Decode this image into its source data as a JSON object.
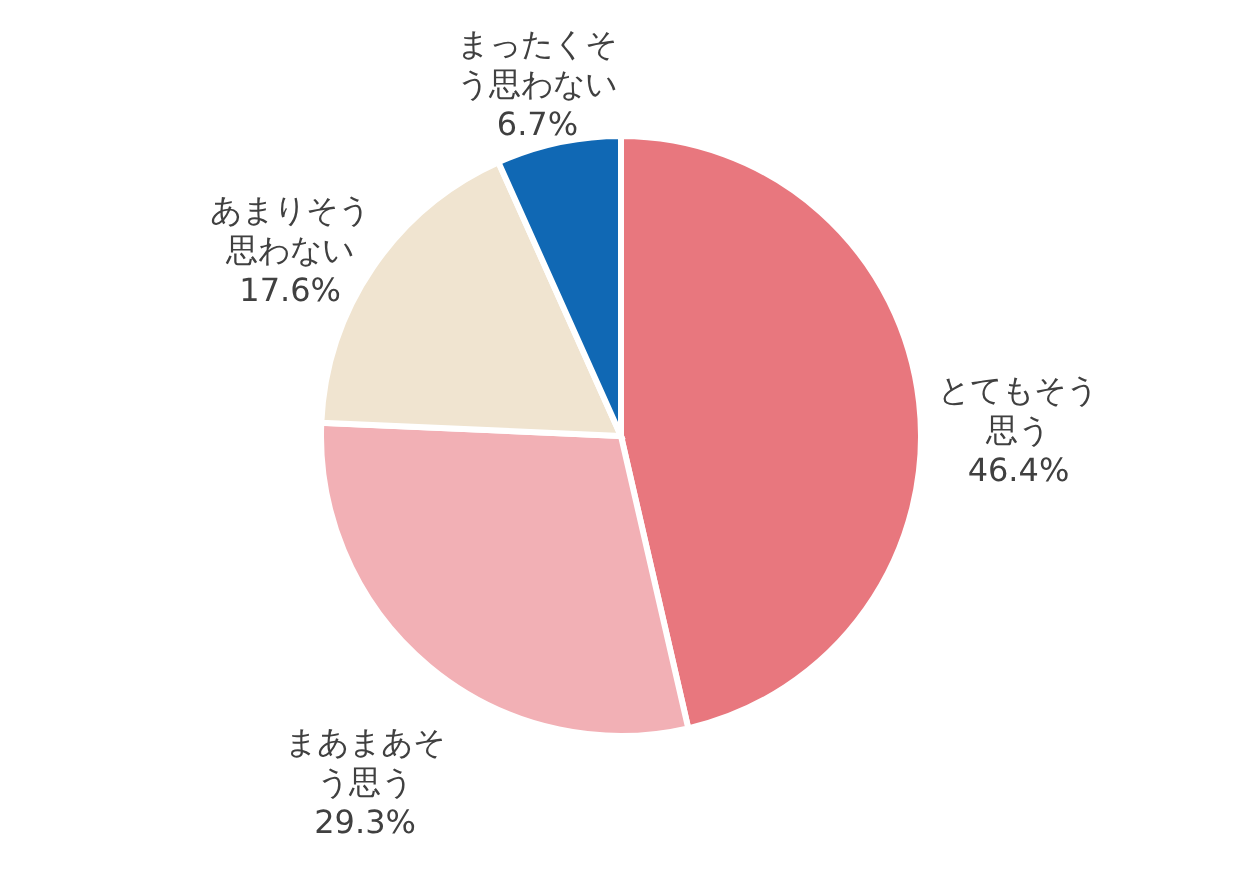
{
  "chart_data": {
    "type": "pie",
    "categories": [
      "とてもそう思う",
      "まあまあそう思う",
      "あまりそう思わない",
      "まったくそう思わない"
    ],
    "values": [
      46.4,
      29.3,
      17.6,
      6.7
    ],
    "colors": [
      "#e8777e",
      "#f2b0b5",
      "#f0e4d0",
      "#1068b4"
    ],
    "value_labels": [
      "46.4%",
      "29.3%",
      "17.6%",
      "6.7%"
    ]
  }
}
